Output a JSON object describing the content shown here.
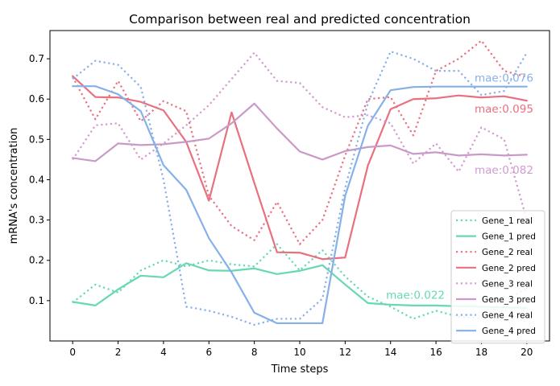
{
  "chart_data": {
    "type": "line",
    "title": "Comparison between real and predicted concentration",
    "xlabel": "Time steps",
    "ylabel": "mRNA's concentration",
    "xlim": [
      -1,
      21
    ],
    "ylim": [
      0.0,
      0.77
    ],
    "xticks": [
      0,
      2,
      4,
      6,
      8,
      10,
      12,
      14,
      16,
      18,
      20
    ],
    "yticks": [
      0.1,
      0.2,
      0.3,
      0.4,
      0.5,
      0.6,
      0.7
    ],
    "x": [
      0,
      1,
      2,
      3,
      4,
      5,
      6,
      7,
      8,
      9,
      10,
      11,
      12,
      13,
      14,
      15,
      16,
      17,
      18,
      19,
      20
    ],
    "legend_position": "bottom-right",
    "series": [
      {
        "name": "Gene_1 real",
        "color": "#66d9b0",
        "style": "dotted",
        "values": [
          0.095,
          0.14,
          0.12,
          0.175,
          0.2,
          0.185,
          0.2,
          0.19,
          0.185,
          0.24,
          0.175,
          0.225,
          0.16,
          0.11,
          0.085,
          0.055,
          0.075,
          0.06,
          0.055,
          0.1,
          0.13
        ]
      },
      {
        "name": "Gene_1 pred",
        "color": "#66d9b0",
        "style": "solid",
        "values": [
          0.097,
          0.088,
          0.128,
          0.162,
          0.158,
          0.193,
          0.175,
          0.174,
          0.18,
          0.166,
          0.174,
          0.188,
          0.14,
          0.094,
          0.09,
          0.088,
          0.088,
          0.086,
          0.085,
          0.083,
          0.082
        ]
      },
      {
        "name": "Gene_2 real",
        "color": "#e8707f",
        "style": "dotted",
        "values": [
          0.655,
          0.55,
          0.645,
          0.545,
          0.595,
          0.57,
          0.36,
          0.285,
          0.25,
          0.345,
          0.24,
          0.3,
          0.46,
          0.6,
          0.605,
          0.51,
          0.67,
          0.7,
          0.745,
          0.67,
          0.655
        ]
      },
      {
        "name": "Gene_2 pred",
        "color": "#e8707f",
        "style": "solid",
        "values": [
          0.657,
          0.605,
          0.604,
          0.593,
          0.572,
          0.494,
          0.348,
          0.567,
          0.392,
          0.22,
          0.219,
          0.203,
          0.207,
          0.435,
          0.575,
          0.6,
          0.602,
          0.609,
          0.604,
          0.607,
          0.596
        ]
      },
      {
        "name": "Gene_3 real",
        "color": "#d29ad0",
        "style": "dotted",
        "values": [
          0.45,
          0.535,
          0.54,
          0.45,
          0.49,
          0.535,
          0.585,
          0.65,
          0.715,
          0.645,
          0.64,
          0.58,
          0.555,
          0.56,
          0.54,
          0.44,
          0.49,
          0.42,
          0.53,
          0.5,
          0.3
        ]
      },
      {
        "name": "Gene_3 pred",
        "color": "#c99ac8",
        "style": "solid",
        "values": [
          0.454,
          0.446,
          0.49,
          0.486,
          0.488,
          0.494,
          0.502,
          0.54,
          0.589,
          0.527,
          0.47,
          0.45,
          0.471,
          0.481,
          0.485,
          0.464,
          0.468,
          0.46,
          0.463,
          0.46,
          0.462
        ]
      },
      {
        "name": "Gene_4 real",
        "color": "#85b0e8",
        "style": "dotted",
        "values": [
          0.65,
          0.695,
          0.685,
          0.63,
          0.4,
          0.085,
          0.075,
          0.06,
          0.04,
          0.055,
          0.055,
          0.105,
          0.38,
          0.59,
          0.718,
          0.7,
          0.67,
          0.67,
          0.61,
          0.62,
          0.715
        ]
      },
      {
        "name": "Gene_4 pred",
        "color": "#85b0e8",
        "style": "solid",
        "values": [
          0.632,
          0.632,
          0.612,
          0.57,
          0.436,
          0.375,
          0.255,
          0.17,
          0.07,
          0.044,
          0.044,
          0.044,
          0.36,
          0.534,
          0.622,
          0.63,
          0.631,
          0.631,
          0.631,
          0.631,
          0.631
        ]
      }
    ],
    "annotations": [
      {
        "text": "mae:0.022",
        "x": 13.8,
        "y": 0.115,
        "color": "#66d9b0"
      },
      {
        "text": "mae:0.095",
        "x": 17.7,
        "y": 0.577,
        "color": "#e8707f"
      },
      {
        "text": "mae:0.082",
        "x": 17.7,
        "y": 0.425,
        "color": "#d29ad0"
      },
      {
        "text": "mae:0.076",
        "x": 17.7,
        "y": 0.653,
        "color": "#85b0e8"
      }
    ]
  }
}
